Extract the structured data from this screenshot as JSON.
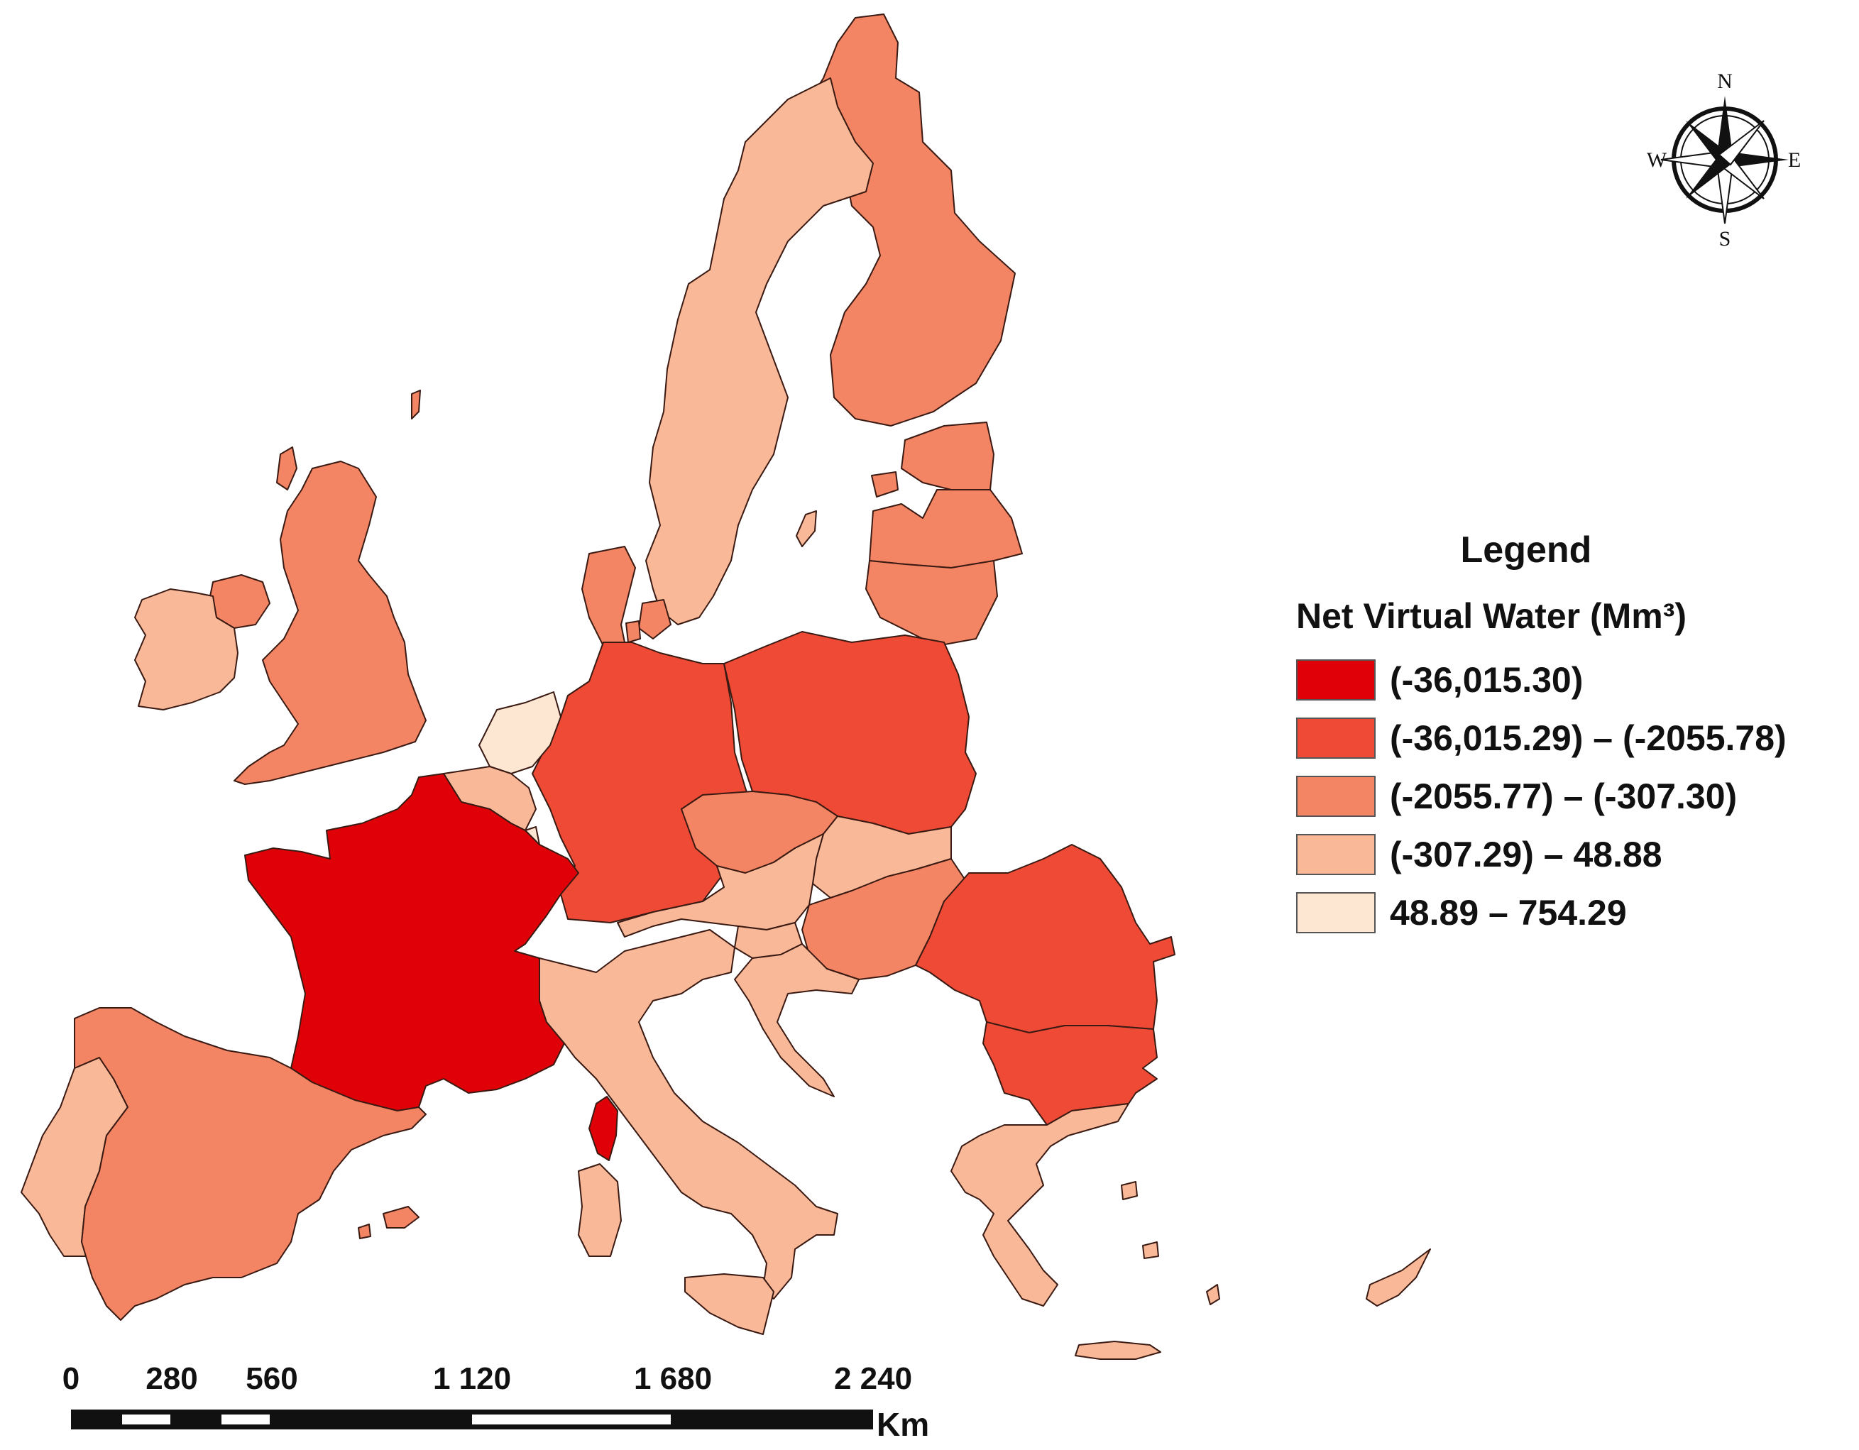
{
  "legend": {
    "title": "Legend",
    "subtitle": "Net Virtual Water (Mm³)",
    "classes": [
      {
        "label": "(-36,015.30)",
        "color": "#df0008"
      },
      {
        "label": "(-36,015.29) – (-2055.78)",
        "color": "#ee4a36"
      },
      {
        "label": "(-2055.77) – (-307.30)",
        "color": "#f48564"
      },
      {
        "label": "(-307.29) – 48.88",
        "color": "#f9b898"
      },
      {
        "label": "48.89 – 754.29",
        "color": "#fde7d3"
      }
    ]
  },
  "compass": {
    "n": "N",
    "s": "S",
    "e": "E",
    "w": "W"
  },
  "scale": {
    "ticks": [
      "0",
      "280",
      "560",
      "1 120",
      "1 680",
      "2 240"
    ],
    "unit": "Km"
  },
  "regions": [
    {
      "name": "France",
      "class": 0
    },
    {
      "name": "Corsica",
      "class": 0
    },
    {
      "name": "Germany",
      "class": 1
    },
    {
      "name": "Poland",
      "class": 1
    },
    {
      "name": "Romania",
      "class": 1
    },
    {
      "name": "Bulgaria",
      "class": 1
    },
    {
      "name": "Spain",
      "class": 2
    },
    {
      "name": "United Kingdom",
      "class": 2
    },
    {
      "name": "Northern Ireland",
      "class": 2
    },
    {
      "name": "Finland",
      "class": 2
    },
    {
      "name": "Denmark",
      "class": 2
    },
    {
      "name": "Estonia",
      "class": 2
    },
    {
      "name": "Latvia",
      "class": 2
    },
    {
      "name": "Lithuania",
      "class": 2
    },
    {
      "name": "Czechia",
      "class": 2
    },
    {
      "name": "Hungary",
      "class": 2
    },
    {
      "name": "Mallorca",
      "class": 2
    },
    {
      "name": "Portugal",
      "class": 3
    },
    {
      "name": "Ireland",
      "class": 3
    },
    {
      "name": "Sweden",
      "class": 3
    },
    {
      "name": "Belgium",
      "class": 3
    },
    {
      "name": "Austria",
      "class": 3
    },
    {
      "name": "Slovakia",
      "class": 3
    },
    {
      "name": "Slovenia",
      "class": 3
    },
    {
      "name": "Croatia",
      "class": 3
    },
    {
      "name": "Italy",
      "class": 3
    },
    {
      "name": "Sardinia",
      "class": 3
    },
    {
      "name": "Sicily",
      "class": 3
    },
    {
      "name": "Greece",
      "class": 3
    },
    {
      "name": "Crete",
      "class": 3
    },
    {
      "name": "Cyprus",
      "class": 3
    },
    {
      "name": "Gotland",
      "class": 3
    },
    {
      "name": "Netherlands",
      "class": 4
    },
    {
      "name": "Luxembourg",
      "class": 4
    }
  ]
}
